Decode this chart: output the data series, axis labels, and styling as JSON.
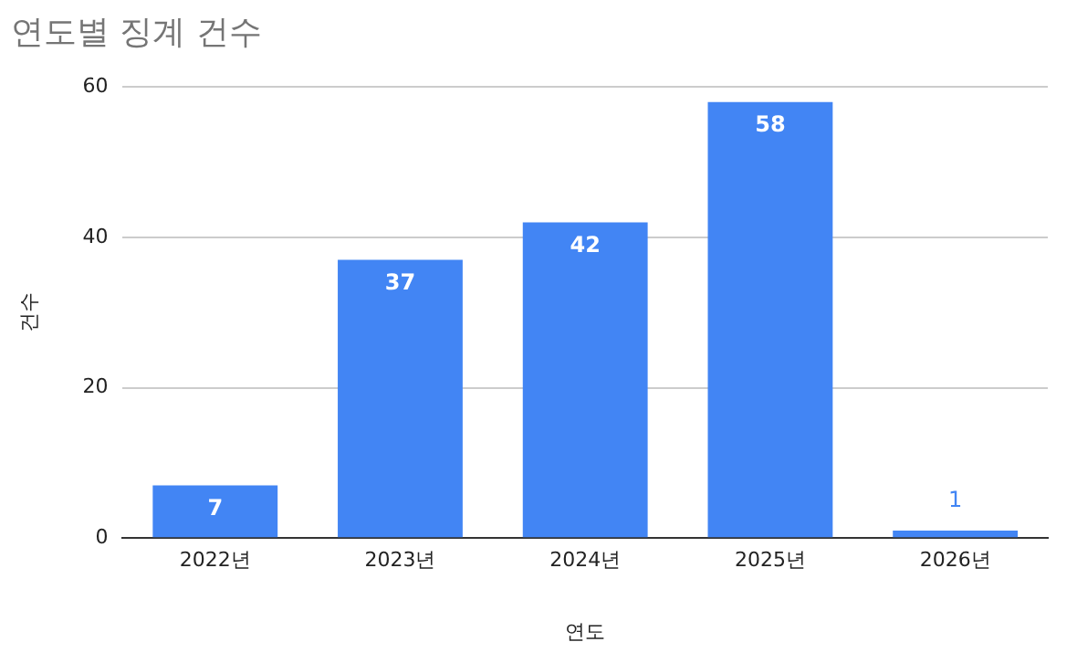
{
  "chart_data": {
    "type": "bar",
    "title": "연도별 징계 건수",
    "xlabel": "연도",
    "ylabel": "건수",
    "categories": [
      "2022년",
      "2023년",
      "2024년",
      "2025년",
      "2026년"
    ],
    "values": [
      7,
      37,
      42,
      58,
      1
    ],
    "color": "#4285f4",
    "ylim": [
      0,
      60
    ],
    "yticks": [
      0,
      20,
      40,
      60
    ],
    "grid": "y",
    "data_labels": true,
    "legend": false
  }
}
